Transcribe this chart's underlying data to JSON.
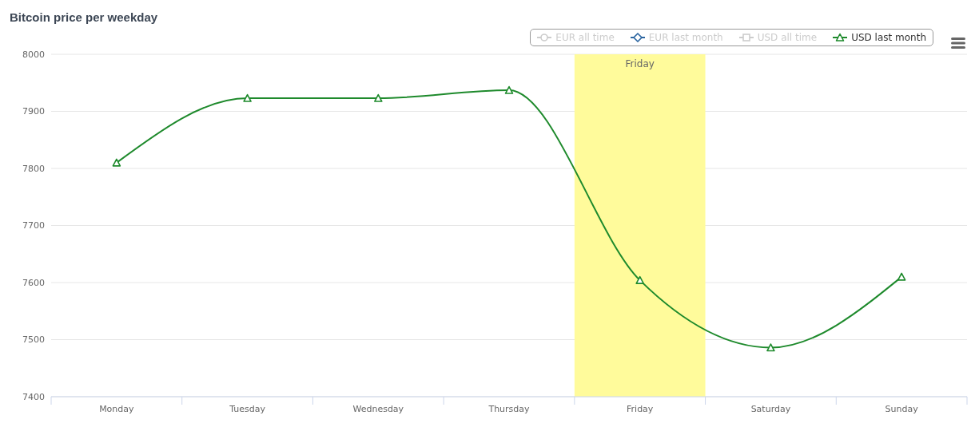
{
  "chart_data": {
    "type": "line",
    "title": "Bitcoin price per weekday",
    "categories": [
      "Monday",
      "Tuesday",
      "Wednesday",
      "Thursday",
      "Friday",
      "Saturday",
      "Sunday"
    ],
    "series": [
      {
        "name": "EUR all time",
        "color": "#cccccc",
        "marker": "circle",
        "values": [
          null,
          null,
          null,
          null,
          null,
          null,
          null
        ]
      },
      {
        "name": "EUR last month",
        "color": "#2b65a0",
        "marker": "diamond",
        "values": [
          null,
          null,
          null,
          null,
          null,
          null,
          null
        ]
      },
      {
        "name": "USD all time",
        "color": "#cccccc",
        "marker": "square",
        "values": [
          null,
          null,
          null,
          null,
          null,
          null,
          null
        ]
      },
      {
        "name": "USD last month",
        "color": "#1e8a2c",
        "marker": "triangle",
        "values": [
          7810,
          7923,
          7923,
          7937,
          7604,
          7486,
          7610
        ]
      }
    ],
    "ylim": [
      7400,
      8000
    ],
    "yticks": [
      7400,
      7500,
      7600,
      7700,
      7800,
      7900,
      8000
    ],
    "grid": "y",
    "legend": "top right",
    "bands": [
      {
        "axis": "x",
        "from": "Friday",
        "to": "Friday",
        "label": "Friday",
        "color": "#fffb9b"
      }
    ]
  }
}
